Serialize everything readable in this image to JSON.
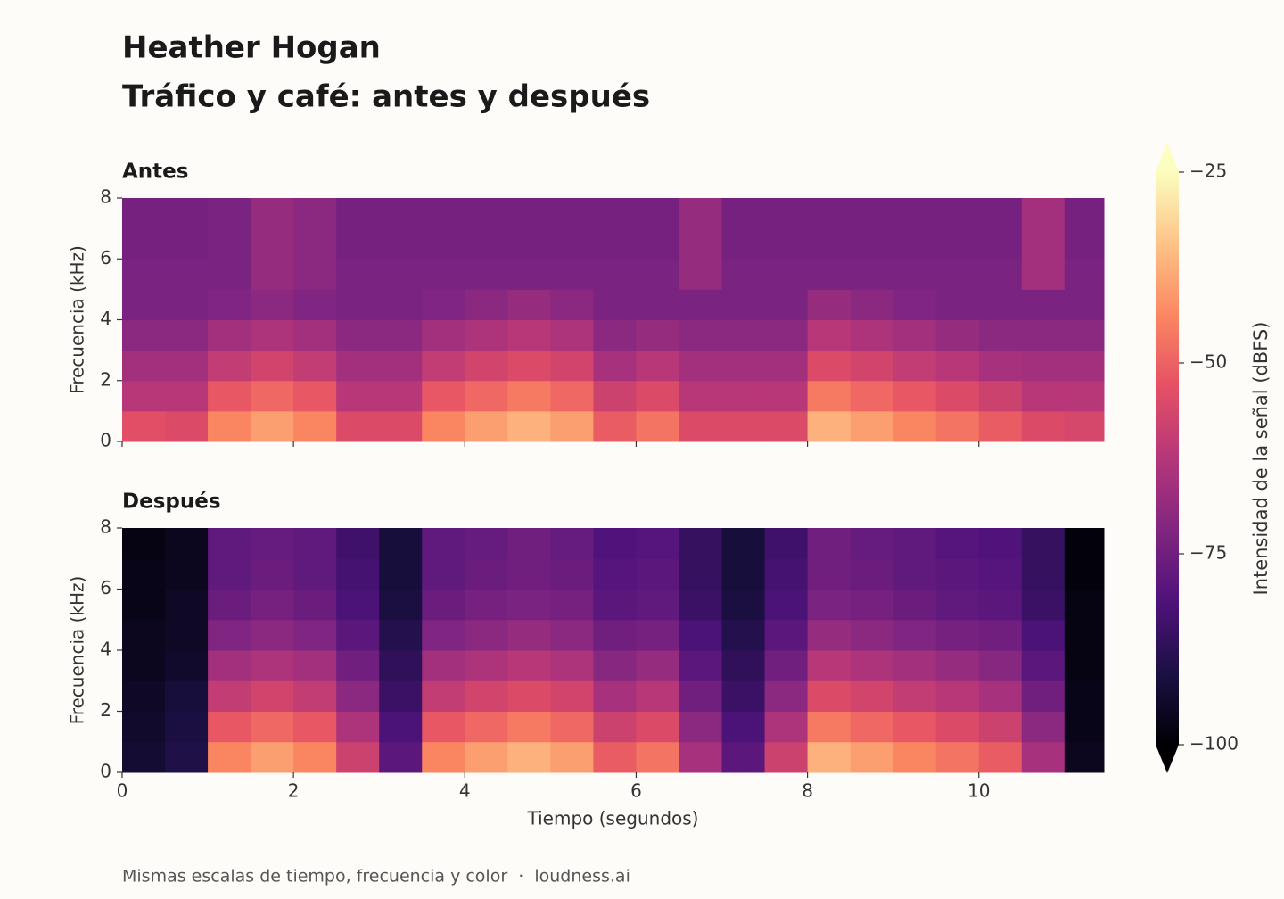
{
  "title": "Heather Hogan",
  "subtitle": "Tráfico y café: antes y después",
  "footer": "Mismas escalas de tiempo, frecuencia y color  ·  loudness.ai",
  "colorbar": {
    "label": "Intensidad de la señal (dBFS)",
    "clim": [
      -100,
      -25
    ],
    "colormap": "magma",
    "extend": "both",
    "ticks": [
      {
        "value": -25,
        "label": "−25"
      },
      {
        "value": -50,
        "label": "−50"
      },
      {
        "value": -75,
        "label": "−75"
      },
      {
        "value": -100,
        "label": "−100"
      }
    ]
  },
  "chart_data": [
    {
      "type": "heatmap",
      "title": "Antes",
      "ylabel": "Frecuencia (kHz)",
      "xticklabels": false,
      "xlim": [
        0,
        11.46
      ],
      "ylim": [
        0,
        8
      ],
      "xticks": [
        0,
        2,
        4,
        6,
        8,
        10
      ],
      "yticks": [
        0,
        2,
        4,
        6,
        8
      ],
      "xbins": [
        0,
        0.5,
        1,
        1.5,
        2,
        2.5,
        3,
        3.5,
        4,
        4.5,
        5,
        5.5,
        6,
        6.5,
        7,
        7.5,
        8,
        8.5,
        9,
        9.5,
        10,
        10.5,
        11,
        11.46
      ],
      "ybins": [
        0,
        1,
        2,
        3,
        4,
        5,
        6,
        7,
        8
      ],
      "values": [
        [
          -54,
          -55,
          -44,
          -40,
          -44,
          -55,
          -55,
          -44,
          -40,
          -37,
          -40,
          -51,
          -47,
          -55,
          -55,
          -55,
          -37,
          -40,
          -44,
          -47,
          -51,
          -55,
          -56
        ],
        [
          -62,
          -62,
          -52,
          -49,
          -52,
          -62,
          -62,
          -52,
          -49,
          -46,
          -49,
          -58,
          -55,
          -62,
          -62,
          -62,
          -46,
          -49,
          -52,
          -55,
          -58,
          -62,
          -62
        ],
        [
          -66,
          -66,
          -60,
          -57,
          -60,
          -66,
          -66,
          -60,
          -57,
          -55,
          -57,
          -65,
          -62,
          -66,
          -66,
          -66,
          -55,
          -57,
          -60,
          -62,
          -65,
          -66,
          -66
        ],
        [
          -70,
          -70,
          -66,
          -64,
          -66,
          -70,
          -70,
          -66,
          -64,
          -62,
          -64,
          -70,
          -68,
          -70,
          -70,
          -70,
          -62,
          -64,
          -66,
          -68,
          -70,
          -70,
          -70
        ],
        [
          -73,
          -73,
          -72,
          -70,
          -72,
          -73,
          -73,
          -72,
          -70,
          -68,
          -70,
          -73,
          -73,
          -73,
          -73,
          -73,
          -68,
          -70,
          -72,
          -73,
          -73,
          -73,
          -73
        ],
        [
          -73,
          -73,
          -73,
          -68,
          -70,
          -73,
          -73,
          -73,
          -73,
          -73,
          -73,
          -73,
          -73,
          -68,
          -73,
          -73,
          -73,
          -73,
          -73,
          -73,
          -73,
          -66,
          -73
        ],
        [
          -74,
          -74,
          -73,
          -68,
          -70,
          -74,
          -74,
          -74,
          -74,
          -74,
          -74,
          -74,
          -74,
          -68,
          -74,
          -74,
          -74,
          -74,
          -74,
          -74,
          -74,
          -66,
          -74
        ],
        [
          -74,
          -74,
          -73,
          -68,
          -70,
          -74,
          -74,
          -74,
          -74,
          -74,
          -74,
          -74,
          -74,
          -68,
          -74,
          -74,
          -74,
          -74,
          -74,
          -74,
          -74,
          -66,
          -74
        ]
      ]
    },
    {
      "type": "heatmap",
      "title": "Después",
      "ylabel": "Frecuencia (kHz)",
      "xlabel": "Tiempo (segundos)",
      "xticklabels": true,
      "xlim": [
        0,
        11.46
      ],
      "ylim": [
        0,
        8
      ],
      "xticks": [
        0,
        2,
        4,
        6,
        8,
        10
      ],
      "yticks": [
        0,
        2,
        4,
        6,
        8
      ],
      "xbins": [
        0,
        0.5,
        1,
        1.5,
        2,
        2.5,
        3,
        3.5,
        4,
        4.5,
        5,
        5.5,
        6,
        6.5,
        7,
        7.5,
        8,
        8.5,
        9,
        9.5,
        10,
        10.5,
        11,
        11.46
      ],
      "ybins": [
        0,
        1,
        2,
        3,
        4,
        5,
        6,
        7,
        8
      ],
      "values": [
        [
          -93,
          -90,
          -44,
          -40,
          -44,
          -58,
          -79,
          -44,
          -40,
          -37,
          -40,
          -51,
          -47,
          -65,
          -79,
          -58,
          -37,
          -40,
          -44,
          -47,
          -51,
          -65,
          -96
        ],
        [
          -94,
          -91,
          -52,
          -49,
          -52,
          -64,
          -82,
          -52,
          -49,
          -46,
          -49,
          -58,
          -55,
          -70,
          -82,
          -64,
          -46,
          -49,
          -52,
          -55,
          -58,
          -70,
          -97
        ],
        [
          -95,
          -92,
          -60,
          -57,
          -60,
          -70,
          -85,
          -60,
          -57,
          -55,
          -57,
          -65,
          -62,
          -75,
          -85,
          -70,
          -55,
          -57,
          -60,
          -62,
          -65,
          -75,
          -97
        ],
        [
          -96,
          -94,
          -66,
          -64,
          -66,
          -75,
          -87,
          -66,
          -64,
          -62,
          -64,
          -71,
          -68,
          -79,
          -87,
          -75,
          -62,
          -64,
          -66,
          -68,
          -71,
          -79,
          -98
        ],
        [
          -96,
          -95,
          -72,
          -70,
          -72,
          -79,
          -89,
          -72,
          -70,
          -68,
          -70,
          -75,
          -74,
          -82,
          -89,
          -79,
          -68,
          -70,
          -72,
          -74,
          -75,
          -82,
          -98
        ],
        [
          -97,
          -95,
          -76,
          -74,
          -76,
          -82,
          -91,
          -76,
          -74,
          -73,
          -74,
          -79,
          -78,
          -85,
          -91,
          -82,
          -73,
          -74,
          -76,
          -78,
          -79,
          -85,
          -98
        ],
        [
          -97,
          -96,
          -78,
          -76,
          -78,
          -83,
          -92,
          -78,
          -76,
          -75,
          -76,
          -80,
          -79,
          -86,
          -92,
          -83,
          -75,
          -76,
          -78,
          -79,
          -80,
          -86,
          -99
        ],
        [
          -98,
          -96,
          -78,
          -77,
          -78,
          -84,
          -92,
          -78,
          -77,
          -75,
          -77,
          -81,
          -80,
          -86,
          -92,
          -84,
          -75,
          -77,
          -78,
          -80,
          -81,
          -86,
          -99
        ]
      ]
    }
  ]
}
